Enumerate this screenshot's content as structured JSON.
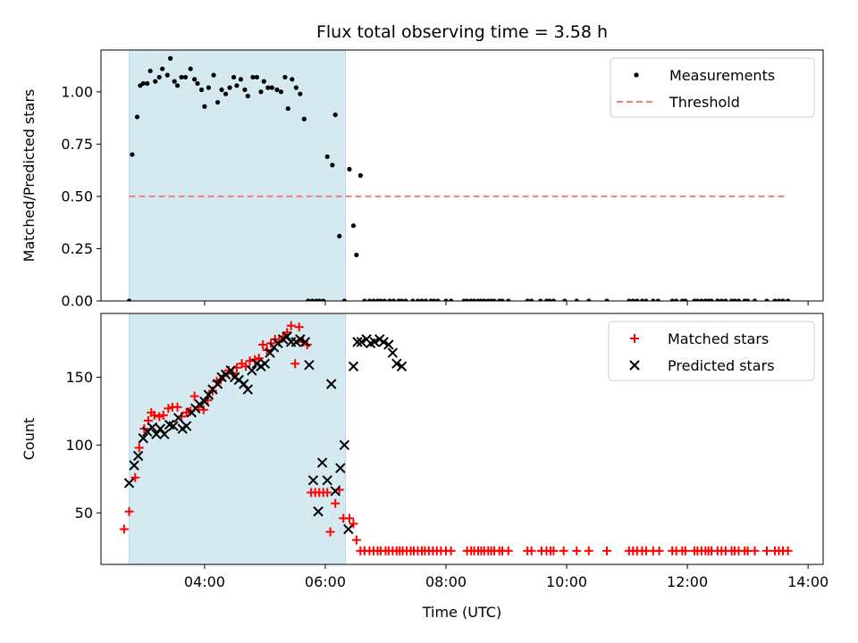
{
  "chart_data": [
    {
      "type": "scatter",
      "title": "Flux total observing time = 3.58 h",
      "xlabel": "",
      "ylabel": "Matched/Predicted stars",
      "xlim": [
        "02:17",
        "14:15"
      ],
      "ylim": [
        0,
        1.2
      ],
      "yticks": [
        0.0,
        0.25,
        0.5,
        0.75,
        1.0
      ],
      "ytick_labels": [
        "0.00",
        "0.25",
        "0.50",
        "0.75",
        "1.00"
      ],
      "legend_position": "top-right",
      "shaded_span": {
        "start": "02:45",
        "end": "06:20",
        "color": "#d4e9f0"
      },
      "series": [
        {
          "name": "Measurements",
          "marker": "dot",
          "color": "#000000",
          "x": [
            "02:45",
            "02:48",
            "02:53",
            "02:56",
            "02:59",
            "03:03",
            "03:06",
            "03:11",
            "03:15",
            "03:18",
            "03:23",
            "03:26",
            "03:30",
            "03:33",
            "03:37",
            "03:41",
            "03:46",
            "03:50",
            "03:53",
            "03:57",
            "04:00",
            "04:04",
            "04:09",
            "04:13",
            "04:17",
            "04:21",
            "04:25",
            "04:29",
            "04:32",
            "04:36",
            "04:40",
            "04:43",
            "04:48",
            "04:52",
            "04:56",
            "04:59",
            "05:03",
            "05:07",
            "05:12",
            "05:16",
            "05:20",
            "05:23",
            "05:27",
            "05:31",
            "05:35",
            "05:39",
            "05:43",
            "05:47",
            "05:51",
            "05:54",
            "05:58",
            "06:02",
            "06:07",
            "06:10",
            "06:14",
            "06:19",
            "06:24",
            "06:28",
            "06:31",
            "06:35",
            "06:39",
            "06:44",
            "06:48",
            "06:52",
            "06:55",
            "06:59",
            "07:04",
            "07:08",
            "07:13",
            "07:16",
            "07:20",
            "07:27",
            "07:32",
            "07:36",
            "07:40",
            "07:45",
            "07:48",
            "07:52",
            "08:00",
            "08:05",
            "08:18",
            "08:21",
            "08:25",
            "08:28",
            "08:32",
            "08:35",
            "08:38",
            "08:42",
            "08:45",
            "08:48",
            "08:53",
            "08:56",
            "09:02",
            "09:21",
            "09:25",
            "09:34",
            "09:40",
            "09:43",
            "09:47",
            "09:58",
            "10:10",
            "10:22",
            "10:40",
            "11:02",
            "11:06",
            "11:10",
            "11:15",
            "11:19",
            "11:26",
            "11:31",
            "11:45",
            "11:49",
            "11:55",
            "11:58",
            "12:07",
            "12:10",
            "12:14",
            "12:18",
            "12:21",
            "12:24",
            "12:30",
            "12:34",
            "12:38",
            "12:44",
            "12:47",
            "12:51",
            "12:57",
            "13:00",
            "13:07",
            "13:19",
            "13:27",
            "13:31",
            "13:35",
            "13:40"
          ],
          "y": [
            0.0,
            0.7,
            0.88,
            1.03,
            1.04,
            1.04,
            1.1,
            1.05,
            1.07,
            1.11,
            1.08,
            1.16,
            1.05,
            1.03,
            1.07,
            1.07,
            1.11,
            1.06,
            1.04,
            1.01,
            0.93,
            1.02,
            1.08,
            0.95,
            1.01,
            0.99,
            1.02,
            1.07,
            1.03,
            1.06,
            1.01,
            0.98,
            1.07,
            1.07,
            1.0,
            1.05,
            1.02,
            1.02,
            1.01,
            1.0,
            1.07,
            0.92,
            1.06,
            1.02,
            0.99,
            0.87,
            0.0,
            0.0,
            0.0,
            0.0,
            0.0,
            0.69,
            0.65,
            0.89,
            0.31,
            0.0,
            0.63,
            0.36,
            0.22,
            0.6,
            0.0,
            0.0,
            0.0,
            0.0,
            0.0,
            0.0,
            0.0,
            0.0,
            0.0,
            0.0,
            0.0,
            0.0,
            0.0,
            0.0,
            0.0,
            0.0,
            0.0,
            0.0,
            0.0,
            0.0,
            0.0,
            0.0,
            0.0,
            0.0,
            0.0,
            0.0,
            0.0,
            0.0,
            0.0,
            0.0,
            0.0,
            0.0,
            0.0,
            0.0,
            0.0,
            0.0,
            0.0,
            0.0,
            0.0,
            0.0,
            0.0,
            0.0,
            0.0,
            0.0,
            0.0,
            0.0,
            0.0,
            0.0,
            0.0,
            0.0,
            0.0,
            0.0,
            0.0,
            0.0,
            0.0,
            0.0,
            0.0,
            0.0,
            0.0,
            0.0,
            0.0,
            0.0,
            0.0,
            0.0,
            0.0,
            0.0,
            0.0,
            0.0,
            0.0,
            0.0,
            0.0,
            0.0,
            0.0,
            0.0
          ]
        },
        {
          "name": "Threshold",
          "marker": "dashed-line",
          "color": "#f08080",
          "x": [
            "02:45",
            "13:40"
          ],
          "y": [
            0.5,
            0.5
          ]
        }
      ]
    },
    {
      "type": "scatter",
      "title": "",
      "xlabel": "Time (UTC)",
      "ylabel": "Count",
      "xlim": [
        "02:17",
        "14:15"
      ],
      "ylim": [
        12,
        197
      ],
      "yticks": [
        50,
        100,
        150
      ],
      "ytick_labels": [
        "50",
        "100",
        "150"
      ],
      "xticks": [
        "04:00",
        "06:00",
        "08:00",
        "10:00",
        "12:00",
        "14:00"
      ],
      "xtick_labels": [
        "04:00",
        "06:00",
        "08:00",
        "10:00",
        "12:00",
        "14:00"
      ],
      "legend_position": "top-right",
      "shaded_span": {
        "start": "02:45",
        "end": "06:20",
        "color": "#d4e9f0"
      },
      "series": [
        {
          "name": "Matched stars",
          "marker": "plus",
          "color": "#ff0000",
          "x": [
            "02:40",
            "02:45",
            "02:51",
            "02:55",
            "03:00",
            "03:04",
            "03:07",
            "03:10",
            "03:15",
            "03:19",
            "03:24",
            "03:28",
            "03:33",
            "03:37",
            "03:42",
            "03:46",
            "03:50",
            "03:54",
            "03:59",
            "04:03",
            "04:08",
            "04:12",
            "04:16",
            "04:19",
            "04:24",
            "04:28",
            "04:32",
            "04:37",
            "04:41",
            "04:45",
            "04:50",
            "04:54",
            "04:58",
            "05:02",
            "05:06",
            "05:10",
            "05:14",
            "05:18",
            "05:22",
            "05:26",
            "05:30",
            "05:34",
            "05:38",
            "05:42",
            "05:46",
            "05:50",
            "05:54",
            "05:58",
            "06:02",
            "06:05",
            "06:10",
            "06:14",
            "06:18",
            "06:24",
            "06:28",
            "06:31",
            "06:35",
            "06:39",
            "06:44",
            "06:48",
            "06:52",
            "06:55",
            "07:00",
            "07:03",
            "07:07",
            "07:11",
            "07:14",
            "07:17",
            "07:21",
            "07:25",
            "07:28",
            "07:32",
            "07:36",
            "07:39",
            "07:43",
            "07:47",
            "07:51",
            "07:55",
            "08:00",
            "08:05",
            "08:21",
            "08:25",
            "08:28",
            "08:32",
            "08:35",
            "08:38",
            "08:42",
            "08:45",
            "08:48",
            "08:53",
            "08:56",
            "09:02",
            "09:21",
            "09:25",
            "09:35",
            "09:40",
            "09:44",
            "09:47",
            "09:57",
            "10:10",
            "10:22",
            "10:40",
            "11:02",
            "11:06",
            "11:10",
            "11:15",
            "11:19",
            "11:26",
            "11:32",
            "11:45",
            "11:49",
            "11:55",
            "11:58",
            "12:07",
            "12:10",
            "12:14",
            "12:18",
            "12:21",
            "12:24",
            "12:30",
            "12:34",
            "12:38",
            "12:44",
            "12:47",
            "12:51",
            "12:57",
            "13:00",
            "13:07",
            "13:19",
            "13:27",
            "13:31",
            "13:35",
            "13:40"
          ],
          "y": [
            38,
            51,
            76,
            98,
            112,
            118,
            124,
            122,
            121,
            122,
            127,
            128,
            128,
            121,
            124,
            125,
            136,
            128,
            126,
            133,
            140,
            147,
            148,
            151,
            155,
            153,
            157,
            160,
            158,
            162,
            163,
            164,
            174,
            170,
            175,
            178,
            176,
            180,
            183,
            188,
            160,
            187,
            176,
            174,
            65,
            65,
            65,
            65,
            65,
            36,
            57,
            67,
            46,
            46,
            42,
            30,
            22,
            22,
            22,
            22,
            22,
            22,
            22,
            22,
            22,
            22,
            22,
            22,
            22,
            22,
            22,
            22,
            22,
            22,
            22,
            22,
            22,
            22,
            22,
            22,
            22,
            22,
            22,
            22,
            22,
            22,
            22,
            22,
            22,
            22,
            22,
            22,
            22,
            22,
            22,
            22,
            22,
            22,
            22,
            22,
            22,
            22,
            22,
            22,
            22,
            22,
            22,
            22,
            22,
            22,
            22,
            22,
            22,
            22,
            22,
            22,
            22,
            22,
            22,
            22,
            22,
            22,
            22,
            22,
            22,
            22,
            22,
            22,
            22,
            22,
            22,
            22,
            22
          ]
        },
        {
          "name": "Predicted stars",
          "marker": "x",
          "color": "#000000",
          "x": [
            "02:45",
            "02:50",
            "02:54",
            "02:59",
            "03:03",
            "03:08",
            "03:12",
            "03:16",
            "03:20",
            "03:25",
            "03:29",
            "03:34",
            "03:38",
            "03:42",
            "03:47",
            "03:51",
            "03:55",
            "04:00",
            "04:04",
            "04:08",
            "04:13",
            "04:17",
            "04:21",
            "04:26",
            "04:30",
            "04:34",
            "04:39",
            "04:43",
            "04:47",
            "04:52",
            "04:56",
            "05:00",
            "05:05",
            "05:09",
            "05:13",
            "05:18",
            "05:22",
            "05:26",
            "05:31",
            "05:35",
            "05:40",
            "05:44",
            "05:48",
            "05:53",
            "05:57",
            "06:02",
            "06:06",
            "06:10",
            "06:15",
            "06:19",
            "06:23",
            "06:28",
            "06:32",
            "06:36",
            "06:41",
            "06:45",
            "06:49",
            "06:54",
            "06:58",
            "07:03",
            "07:07",
            "07:11",
            "07:16"
          ],
          "y": [
            72,
            85,
            92,
            105,
            110,
            113,
            108,
            112,
            108,
            115,
            114,
            120,
            112,
            114,
            124,
            127,
            130,
            132,
            137,
            141,
            145,
            150,
            152,
            155,
            150,
            148,
            145,
            141,
            155,
            160,
            158,
            160,
            168,
            172,
            175,
            178,
            180,
            176,
            176,
            178,
            176,
            159,
            74,
            51,
            87,
            74,
            145,
            66,
            83,
            100,
            38,
            158,
            176,
            176,
            178,
            175,
            176,
            178,
            176,
            174,
            168,
            160,
            158
          ]
        }
      ]
    }
  ]
}
